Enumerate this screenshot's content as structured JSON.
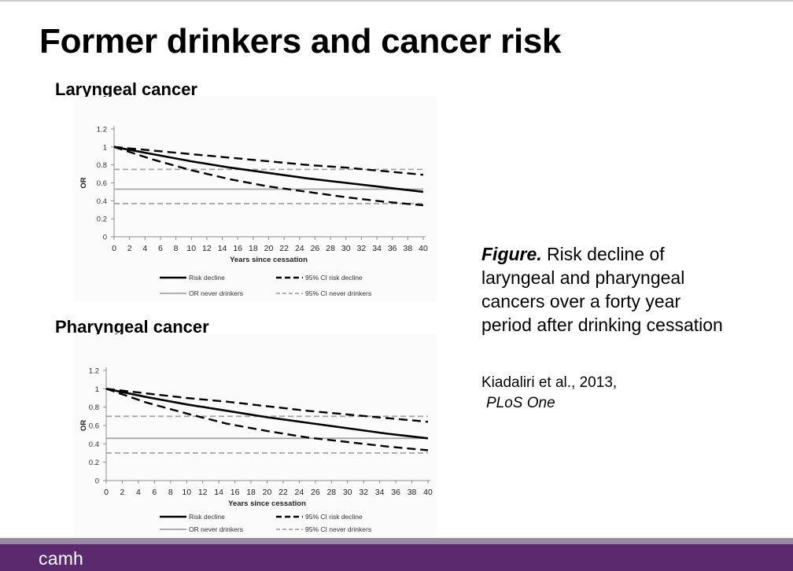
{
  "slide": {
    "title": "Former drinkers and cancer risk",
    "caption_label": "Figure.",
    "caption_text": " Risk decline of laryngeal and pharyngeal cancers over a forty year period after drinking cessation",
    "citation_line1": "Kiadaliri et al., 2013,",
    "citation_line2": "PLoS One",
    "logo_text": "camh"
  },
  "chart_data": [
    {
      "type": "line",
      "title": "Laryngeal cancer",
      "xlabel": "Years since cessation",
      "ylabel": "OR",
      "xlim": [
        0,
        40
      ],
      "ylim": [
        0,
        1.2
      ],
      "x_ticks": [
        0,
        2,
        4,
        6,
        8,
        10,
        12,
        14,
        16,
        18,
        20,
        22,
        24,
        26,
        28,
        30,
        32,
        34,
        36,
        38,
        40
      ],
      "y_ticks": [
        0,
        0.2,
        0.4,
        0.6,
        0.8,
        1,
        1.2
      ],
      "grid": false,
      "legend_position": "bottom",
      "x": [
        0,
        5,
        10,
        15,
        20,
        25,
        30,
        35,
        40
      ],
      "series": [
        {
          "name": "Risk decline",
          "style": "solid",
          "color": "#000000",
          "values": [
            1.0,
            0.92,
            0.84,
            0.77,
            0.71,
            0.65,
            0.6,
            0.55,
            0.5
          ]
        },
        {
          "name": "95% CI risk decline",
          "style": "dashed",
          "color": "#000000",
          "values": [
            1.0,
            0.96,
            0.92,
            0.88,
            0.84,
            0.8,
            0.77,
            0.73,
            0.69
          ]
        },
        {
          "name": "95% CI risk decline",
          "style": "dashed",
          "color": "#000000",
          "values": [
            1.0,
            0.86,
            0.74,
            0.64,
            0.56,
            0.5,
            0.44,
            0.39,
            0.35
          ]
        },
        {
          "name": "OR never drinkers",
          "style": "solid",
          "color": "#a6a6a6",
          "values": [
            0.53,
            0.53,
            0.53,
            0.53,
            0.53,
            0.53,
            0.53,
            0.53,
            0.53
          ]
        },
        {
          "name": "95% CI never drinkers",
          "style": "dashed",
          "color": "#a6a6a6",
          "values": [
            0.75,
            0.75,
            0.75,
            0.75,
            0.75,
            0.75,
            0.75,
            0.75,
            0.75
          ]
        },
        {
          "name": "95% CI never drinkers",
          "style": "dashed",
          "color": "#a6a6a6",
          "values": [
            0.37,
            0.37,
            0.37,
            0.37,
            0.37,
            0.37,
            0.37,
            0.37,
            0.37
          ]
        }
      ],
      "legend": [
        {
          "label": "Risk decline",
          "style": "solid",
          "color": "#000000"
        },
        {
          "label": "95% CI risk decline",
          "style": "dashed",
          "color": "#000000"
        },
        {
          "label": "OR never drinkers",
          "style": "solid",
          "color": "#a6a6a6"
        },
        {
          "label": "95% CI never drinkers",
          "style": "dashed",
          "color": "#a6a6a6"
        }
      ]
    },
    {
      "type": "line",
      "title": "Pharyngeal cancer",
      "xlabel": "Years since cessation",
      "ylabel": "OR",
      "xlim": [
        0,
        40
      ],
      "ylim": [
        0,
        1.2
      ],
      "x_ticks": [
        0,
        2,
        4,
        6,
        8,
        10,
        12,
        14,
        16,
        18,
        20,
        22,
        24,
        26,
        28,
        30,
        32,
        34,
        36,
        38,
        40
      ],
      "y_ticks": [
        0,
        0.2,
        0.4,
        0.6,
        0.8,
        1,
        1.2
      ],
      "grid": false,
      "legend_position": "bottom",
      "x": [
        0,
        5,
        10,
        15,
        20,
        25,
        30,
        35,
        40
      ],
      "series": [
        {
          "name": "Risk decline",
          "style": "solid",
          "color": "#000000",
          "values": [
            1.0,
            0.91,
            0.83,
            0.76,
            0.69,
            0.63,
            0.57,
            0.51,
            0.46
          ]
        },
        {
          "name": "95% CI risk decline",
          "style": "dashed",
          "color": "#000000",
          "values": [
            1.0,
            0.95,
            0.9,
            0.86,
            0.81,
            0.76,
            0.72,
            0.68,
            0.64
          ]
        },
        {
          "name": "95% CI risk decline",
          "style": "dashed",
          "color": "#000000",
          "values": [
            1.0,
            0.85,
            0.73,
            0.62,
            0.54,
            0.47,
            0.42,
            0.37,
            0.33
          ]
        },
        {
          "name": "OR never drinkers",
          "style": "solid",
          "color": "#a6a6a6",
          "values": [
            0.46,
            0.46,
            0.46,
            0.46,
            0.46,
            0.46,
            0.46,
            0.46,
            0.46
          ]
        },
        {
          "name": "95% CI never drinkers",
          "style": "dashed",
          "color": "#a6a6a6",
          "values": [
            0.7,
            0.7,
            0.7,
            0.7,
            0.7,
            0.7,
            0.7,
            0.7,
            0.7
          ]
        },
        {
          "name": "95% CI never drinkers",
          "style": "dashed",
          "color": "#a6a6a6",
          "values": [
            0.3,
            0.3,
            0.3,
            0.3,
            0.3,
            0.3,
            0.3,
            0.3,
            0.3
          ]
        }
      ],
      "legend": [
        {
          "label": "Risk decline",
          "style": "solid",
          "color": "#000000"
        },
        {
          "label": "95% CI risk decline",
          "style": "dashed",
          "color": "#000000"
        },
        {
          "label": "OR never drinkers",
          "style": "solid",
          "color": "#a6a6a6"
        },
        {
          "label": "95% CI never drinkers",
          "style": "dashed",
          "color": "#a6a6a6"
        }
      ]
    }
  ]
}
